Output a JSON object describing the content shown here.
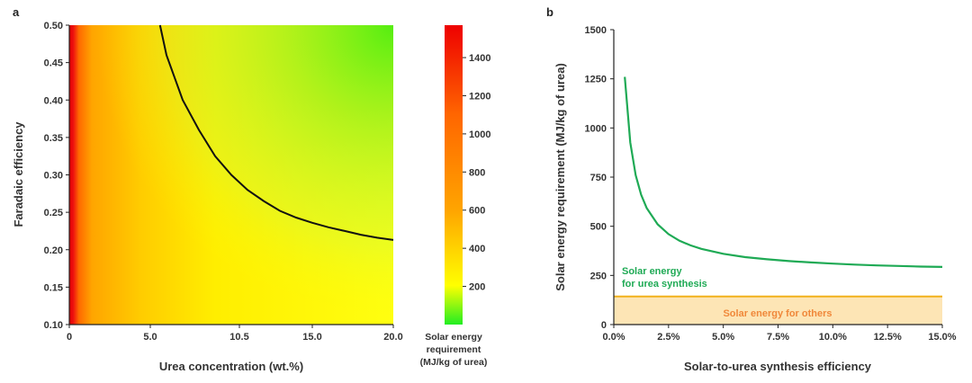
{
  "chart_data": [
    {
      "panel": "a",
      "type": "heatmap",
      "xlabel": "Urea concentration (wt.%)",
      "ylabel": "Faradaic efficiency",
      "xlim": [
        0,
        20
      ],
      "ylim": [
        0.1,
        0.5
      ],
      "x_ticks": [
        {
          "value": 0,
          "label": "0"
        },
        {
          "value": 5,
          "label": "5.0"
        },
        {
          "value": 10.5,
          "label": "10.5"
        },
        {
          "value": 15,
          "label": "15.0"
        },
        {
          "value": 20,
          "label": "20.0"
        }
      ],
      "y_ticks": [
        {
          "value": 0.1,
          "label": "0.10"
        },
        {
          "value": 0.15,
          "label": "0.15"
        },
        {
          "value": 0.2,
          "label": "0.20"
        },
        {
          "value": 0.25,
          "label": "0.25"
        },
        {
          "value": 0.3,
          "label": "0.30"
        },
        {
          "value": 0.35,
          "label": "0.35"
        },
        {
          "value": 0.4,
          "label": "0.40"
        },
        {
          "value": 0.45,
          "label": "0.45"
        },
        {
          "value": 0.5,
          "label": "0.50"
        }
      ],
      "colorbar": {
        "range": [
          0,
          1570
        ],
        "ticks": [
          "200",
          "400",
          "600",
          "800",
          "1000",
          "1200",
          "1400"
        ],
        "tick_values": [
          200,
          400,
          600,
          800,
          1000,
          1200,
          1400
        ],
        "label_lines": [
          "Solar energy",
          "requirement",
          "(MJ/kg of urea)"
        ],
        "colors": [
          "#22ee22",
          "#ffff00",
          "#ff9900",
          "#ee0000"
        ]
      },
      "contour_line": {
        "x": [
          5.6,
          6.0,
          7.0,
          8.0,
          9.0,
          10.0,
          11.0,
          12.0,
          13.0,
          14.0,
          15.0,
          16.0,
          17.0,
          18.0,
          19.0,
          20.0
        ],
        "y": [
          0.5,
          0.46,
          0.4,
          0.36,
          0.325,
          0.3,
          0.28,
          0.265,
          0.252,
          0.243,
          0.236,
          0.23,
          0.225,
          0.22,
          0.216,
          0.213
        ]
      }
    },
    {
      "panel": "b",
      "type": "line",
      "xlabel": "Solar-to-urea synthesis efficiency",
      "ylabel": "Solar energy requirement (MJ/kg of urea)",
      "xlim": [
        0,
        15
      ],
      "ylim": [
        0,
        1500
      ],
      "x_ticks": [
        {
          "value": 0,
          "label": "0.0%"
        },
        {
          "value": 2.5,
          "label": "2.5%"
        },
        {
          "value": 5,
          "label": "5.0%"
        },
        {
          "value": 7.5,
          "label": "7.5%"
        },
        {
          "value": 10,
          "label": "10.0%"
        },
        {
          "value": 12.5,
          "label": "12.5%"
        },
        {
          "value": 15,
          "label": "15.0%"
        }
      ],
      "y_ticks": [
        {
          "value": 0,
          "label": "0"
        },
        {
          "value": 250,
          "label": "250"
        },
        {
          "value": 500,
          "label": "500"
        },
        {
          "value": 750,
          "label": "750"
        },
        {
          "value": 1000,
          "label": "1000"
        },
        {
          "value": 1250,
          "label": "1250"
        },
        {
          "value": 1500,
          "label": "1500"
        }
      ],
      "series": [
        {
          "name": "Solar energy for urea synthesis",
          "x": [
            0.5,
            0.75,
            1.0,
            1.25,
            1.5,
            2.0,
            2.5,
            3.0,
            3.5,
            4.0,
            5.0,
            6.0,
            7.0,
            8.0,
            9.0,
            10.0,
            11.0,
            12.0,
            13.0,
            14.0,
            15.0
          ],
          "values": [
            1260,
            926,
            760,
            660,
            593,
            510,
            460,
            426,
            403,
            385,
            360,
            343,
            332,
            323,
            316,
            310,
            305,
            301,
            298,
            295,
            293
          ],
          "color": "#1faa55"
        },
        {
          "name": "Solar energy for others",
          "x": [
            0,
            15
          ],
          "values": [
            143,
            143
          ],
          "color": "#f2b21c",
          "fill": "#fde5b5"
        }
      ],
      "annotations": {
        "green_line1": "Solar energy",
        "green_line2": "for urea synthesis",
        "orange": "Solar energy for others"
      }
    }
  ]
}
